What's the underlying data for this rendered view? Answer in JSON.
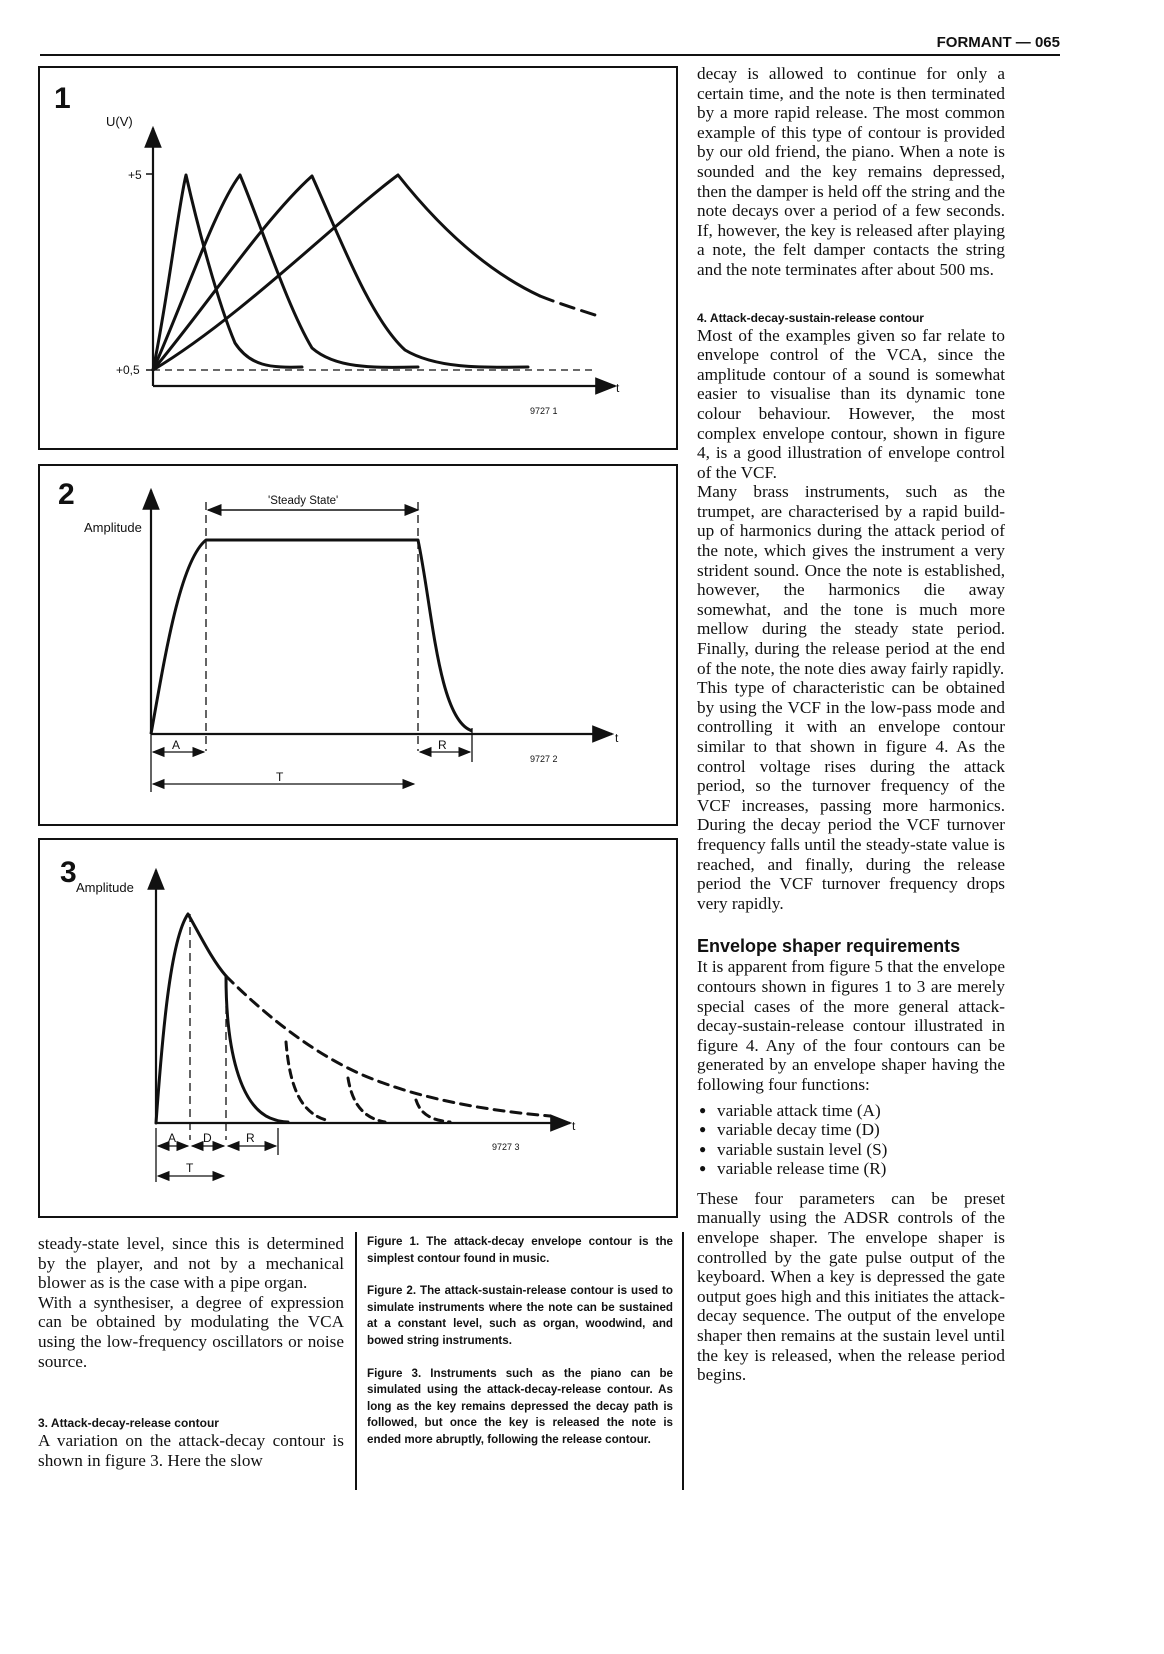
{
  "header": {
    "running_title": "FORMANT — 065"
  },
  "figures": {
    "fig1": {
      "number": "1",
      "y_axis": "U(V)",
      "tick_high": "+5",
      "tick_low": "+0,5",
      "t_label": "t",
      "ref": "9727 1"
    },
    "fig2": {
      "number": "2",
      "y_axis": "Amplitude",
      "steady": "'Steady State'",
      "t_label": "t",
      "ref": "9727 2",
      "a": "A",
      "r": "R",
      "tt": "T"
    },
    "fig3": {
      "number": "3",
      "y_axis": "Amplitude",
      "t_label": "t",
      "ref": "9727 3",
      "a": "A",
      "d": "D",
      "r": "R",
      "tt": "T"
    }
  },
  "left_column": {
    "para1": "steady-state level, since this is determined by the player, and not by a mechanical blower as is the case with a pipe organ.",
    "para2": "With a synthesiser, a degree of expression can be obtained by modulating the VCA using the low-frequency oscillators or noise source.",
    "heading": "3. Attack-decay-release contour",
    "para3": "A variation on the attack-decay contour is shown in figure 3. Here the slow"
  },
  "captions": {
    "fig1": "Figure 1. The attack-decay envelope contour is the simplest contour found in music.",
    "fig2": "Figure 2. The attack-sustain-release contour is used to simulate instruments where the note can be sustained at a constant level, such as organ, woodwind, and bowed string instruments.",
    "fig3": "Figure 3. Instruments such as the piano can be simulated using the attack-decay-release contour. As long as the key remains depressed the decay path is followed, but once the key is released the note is ended more abruptly, following the release contour."
  },
  "right_column": {
    "para1": "decay is allowed to continue for only a certain time, and the note is then terminated by a more rapid release. The most common example of this type of contour is provided by our old friend, the piano. When a note is sounded and the key remains depressed, then the damper is held off the string and the note decays over a period of a few seconds. If, however, the key is released after playing a note, the felt damper contacts the string and the note terminates after about 500 ms.",
    "heading4": "4. Attack-decay-sustain-release contour",
    "para2": "Most of the examples given so far relate to envelope control of the VCA, since the amplitude contour of a sound is somewhat easier to visualise than its dynamic tone colour behaviour. However, the most complex envelope contour, shown in figure 4, is a good illustration of envelope control of the VCF.",
    "para3": "Many brass instruments, such as the trumpet, are characterised by a rapid build-up of harmonics during the attack period of the note, which gives the instrument a very strident sound. Once the note is established, however, the harmonics die away somewhat, and the tone is much more mellow during the steady state period. Finally, during the release period at the end of the note, the note dies away fairly rapidly.",
    "para4": "This type of characteristic can be obtained by using the VCF in the low-pass mode and controlling it with an envelope contour similar to that shown in figure 4. As the control voltage rises during the attack period, so the turnover frequency of the VCF increases, passing more harmonics. During the decay period the VCF turnover frequency falls until the steady-state value is reached, and finally, during the release period the VCF turnover frequency drops very rapidly.",
    "heading_env": "Envelope shaper requirements",
    "para5": "It is apparent from figure 5 that the envelope contours shown in figures 1 to 3 are merely special cases of the more general attack-decay-sustain-release contour illustrated in figure 4. Any of the four contours can be generated by an envelope shaper having the following four functions:",
    "bullets": [
      "variable attack time (A)",
      "variable decay time (D)",
      "variable sustain level (S)",
      "variable release time (R)"
    ],
    "para6": "These four parameters can be preset manually using the ADSR controls of the envelope shaper. The envelope shaper is controlled by the gate pulse output of the keyboard. When a key is depressed the gate output goes high and this initiates the attack-decay sequence. The output of the envelope shaper then remains at the sustain level until the key is released, when the release period begins."
  }
}
